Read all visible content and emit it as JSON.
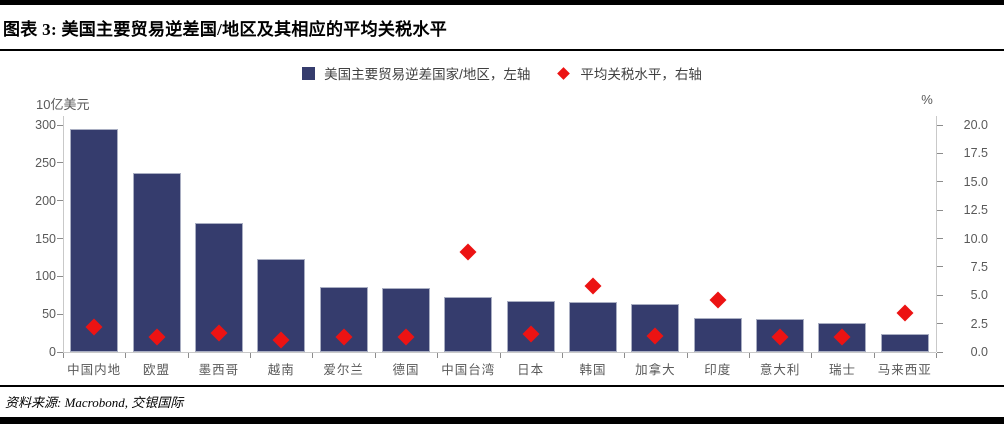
{
  "title": "图表 3: 美国主要贸易逆差国/地区及其相应的平均关税水平",
  "legend": {
    "bars_label": "美国主要贸易逆差国家/地区，左轴",
    "diamond_label": "平均关税水平，右轴"
  },
  "left_axis": {
    "unit_label": "10亿美元",
    "ticks": [
      0,
      50,
      100,
      150,
      200,
      250,
      300
    ],
    "max": 300
  },
  "right_axis": {
    "unit_label": "%",
    "ticks": [
      0,
      2.5,
      5,
      7.5,
      10,
      12.5,
      15,
      17.5,
      20
    ],
    "max": 20
  },
  "source": "资料来源: Macrobond, 交银国际",
  "colors": {
    "bar": "#353c6d",
    "bar_edge": "#a9aec2",
    "diamond": "#ec1313",
    "axis_text": "#595959",
    "axis_line": "#c9c9c9",
    "rule": "#000000"
  },
  "chart_data": {
    "type": "bar",
    "title": "图表 3: 美国主要贸易逆差国/地区及其相应的平均关税水平",
    "categories": [
      "中国内地",
      "欧盟",
      "墨西哥",
      "越南",
      "爱尔兰",
      "德国",
      "中国台湾",
      "日本",
      "韩国",
      "加拿大",
      "印度",
      "意大利",
      "瑞士",
      "马来西亚"
    ],
    "series": [
      {
        "name": "美国主要贸易逆差国家/地区，左轴",
        "type": "bar",
        "axis": "left",
        "unit": "10亿美元",
        "values": [
          295,
          236,
          171,
          123,
          86,
          84,
          73,
          68,
          66,
          63,
          45,
          43,
          38,
          24
        ]
      },
      {
        "name": "平均关税水平，右轴",
        "type": "scatter",
        "marker": "diamond",
        "axis": "right",
        "unit": "%",
        "values": [
          2.2,
          1.3,
          1.7,
          1.1,
          1.3,
          1.3,
          8.8,
          1.6,
          5.8,
          1.4,
          4.6,
          1.3,
          1.3,
          3.4
        ]
      }
    ],
    "left_ylim": [
      0,
      300
    ],
    "right_ylim": [
      0,
      20
    ],
    "grid": false,
    "legend_position": "top-center"
  }
}
